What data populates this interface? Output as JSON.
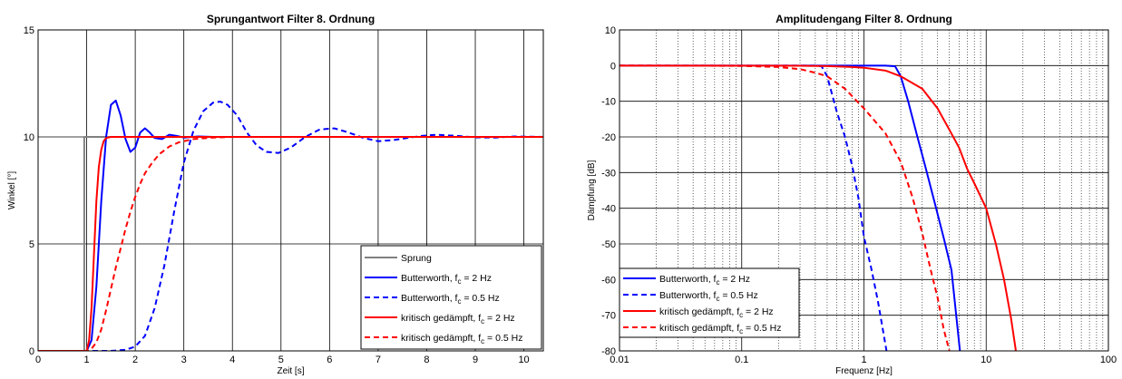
{
  "chart_data": [
    {
      "type": "line",
      "title": "Sprungantwort Filter 8. Ordnung",
      "xlabel": "Zeit [s]",
      "ylabel": "Winkel [°]",
      "xlim": [
        0,
        10.4
      ],
      "ylim": [
        0,
        15
      ],
      "xticks": [
        "0",
        "1",
        "2",
        "3",
        "4",
        "5",
        "6",
        "7",
        "8",
        "9",
        "10"
      ],
      "yticks": [
        "0",
        "5",
        "10",
        "15"
      ],
      "grid": true,
      "legend_position": "bottom-right",
      "series": [
        {
          "name": "Sprung",
          "color": "#808080",
          "style": "solid",
          "x": [
            0,
            0.95,
            0.95,
            10.4
          ],
          "y": [
            0,
            0,
            10,
            10
          ]
        },
        {
          "name": "Butterworth, f_c = 2 Hz",
          "color": "#0000ff",
          "style": "solid",
          "x": [
            0,
            1.0,
            1.1,
            1.2,
            1.3,
            1.4,
            1.5,
            1.6,
            1.7,
            1.8,
            1.9,
            2.0,
            2.1,
            2.2,
            2.3,
            2.4,
            2.55,
            2.7,
            2.85,
            3.0,
            3.3,
            3.6,
            4.0,
            10.4
          ],
          "y": [
            0,
            0,
            0.5,
            3.0,
            7.0,
            10.0,
            11.5,
            11.7,
            11.0,
            9.9,
            9.3,
            9.5,
            10.2,
            10.4,
            10.2,
            9.95,
            9.9,
            10.1,
            10.05,
            9.97,
            10.02,
            10.0,
            10.0,
            10.0
          ]
        },
        {
          "name": "Butterworth, f_c = 0.5 Hz",
          "color": "#0000ff",
          "style": "dashed",
          "x": [
            0,
            1.0,
            1.5,
            1.8,
            2.0,
            2.2,
            2.4,
            2.6,
            2.8,
            3.0,
            3.2,
            3.4,
            3.6,
            3.75,
            3.9,
            4.1,
            4.3,
            4.5,
            4.7,
            4.95,
            5.2,
            5.5,
            5.8,
            6.1,
            6.4,
            6.7,
            7.0,
            7.3,
            7.6,
            7.9,
            8.2,
            8.6,
            9.0,
            9.4,
            9.8,
            10.4
          ],
          "y": [
            0,
            0,
            0,
            0.05,
            0.2,
            0.7,
            2.0,
            4.0,
            6.5,
            8.8,
            10.3,
            11.2,
            11.6,
            11.65,
            11.5,
            11.0,
            10.2,
            9.6,
            9.3,
            9.25,
            9.5,
            10.0,
            10.35,
            10.4,
            10.2,
            9.95,
            9.8,
            9.85,
            9.95,
            10.05,
            10.1,
            10.05,
            9.98,
            9.97,
            10.02,
            10.0
          ]
        },
        {
          "name": "kritisch gedämpft, f_c = 2 Hz",
          "color": "#ff0000",
          "style": "solid",
          "x": [
            0,
            1.0,
            1.05,
            1.1,
            1.15,
            1.2,
            1.25,
            1.3,
            1.35,
            1.4,
            1.5,
            10.4
          ],
          "y": [
            0,
            0,
            0.5,
            2.0,
            4.5,
            7.0,
            8.6,
            9.4,
            9.8,
            9.95,
            10.0,
            10.0
          ]
        },
        {
          "name": "kritisch gedämpft, f_c = 0.5 Hz",
          "color": "#ff0000",
          "style": "dashed",
          "x": [
            0,
            1.0,
            1.1,
            1.2,
            1.3,
            1.4,
            1.5,
            1.6,
            1.7,
            1.8,
            1.9,
            2.0,
            2.1,
            2.2,
            2.35,
            2.5,
            2.7,
            2.9,
            3.2,
            3.6,
            4.0,
            10.4
          ],
          "y": [
            0,
            0,
            0.1,
            0.4,
            1.0,
            1.9,
            2.9,
            3.9,
            4.8,
            5.7,
            6.5,
            7.2,
            7.8,
            8.3,
            8.8,
            9.2,
            9.55,
            9.75,
            9.9,
            9.97,
            10.0,
            10.0
          ]
        }
      ]
    },
    {
      "type": "line",
      "title": "Amplitudengang Filter 8. Ordnung",
      "xlabel": "Frequenz [Hz]",
      "ylabel": "Dämpfung [dB]",
      "xscale": "log",
      "xlim": [
        0.01,
        100
      ],
      "ylim": [
        -80,
        10
      ],
      "xticks": [
        "0.01",
        "0.1",
        "1",
        "10",
        "100"
      ],
      "yticks": [
        "10",
        "0",
        "-10",
        "-20",
        "-30",
        "-40",
        "-50",
        "-60",
        "-70",
        "-80"
      ],
      "grid": true,
      "legend_position": "bottom-left",
      "series": [
        {
          "name": "Butterworth, f_c = 2 Hz",
          "color": "#0000ff",
          "style": "solid",
          "x": [
            0.01,
            1.0,
            1.5,
            1.8,
            2.0,
            2.3,
            2.7,
            3.2,
            3.8,
            4.5,
            5.2,
            6.1
          ],
          "y": [
            0,
            0,
            -0.02,
            -0.2,
            -3.0,
            -10.0,
            -19.2,
            -28.7,
            -38.6,
            -48.4,
            -57.3,
            -80
          ]
        },
        {
          "name": "Butterworth, f_c = 0.5 Hz",
          "color": "#0000ff",
          "style": "dashed",
          "x": [
            0.01,
            0.3,
            0.4,
            0.45,
            0.5,
            0.6,
            0.7,
            0.8,
            0.9,
            1.0,
            1.15,
            1.3,
            1.53
          ],
          "y": [
            0,
            0,
            -0.02,
            -0.2,
            -3.0,
            -13.0,
            -20.0,
            -28.0,
            -37.0,
            -48.0,
            -57.0,
            -66.0,
            -80
          ]
        },
        {
          "name": "kritisch gedämpft, f_c = 2 Hz",
          "color": "#ff0000",
          "style": "solid",
          "x": [
            0.01,
            0.3,
            0.5,
            0.8,
            1.0,
            1.5,
            2.0,
            3.0,
            4.0,
            5.0,
            6.0,
            7.0,
            8.0,
            10.0,
            12.0,
            14.0,
            16.0,
            17.5
          ],
          "y": [
            0,
            -0.05,
            -0.15,
            -0.4,
            -0.6,
            -1.4,
            -3.0,
            -6.5,
            -12.0,
            -18.0,
            -23.0,
            -29.0,
            -33.0,
            -40.0,
            -50.0,
            -60.0,
            -71.0,
            -80
          ]
        },
        {
          "name": "kritisch gedämpft, f_c = 0.5 Hz",
          "color": "#ff0000",
          "style": "dashed",
          "x": [
            0.01,
            0.05,
            0.1,
            0.2,
            0.3,
            0.4,
            0.5,
            0.7,
            1.0,
            1.5,
            2.0,
            2.5,
            3.0,
            3.5,
            4.0,
            4.5,
            5.0
          ],
          "y": [
            0,
            -0.05,
            -0.1,
            -0.4,
            -1.0,
            -2.0,
            -3.0,
            -6.5,
            -12.0,
            -19.0,
            -27.0,
            -37.0,
            -47.0,
            -57.0,
            -65.0,
            -74.0,
            -80
          ]
        }
      ]
    }
  ]
}
